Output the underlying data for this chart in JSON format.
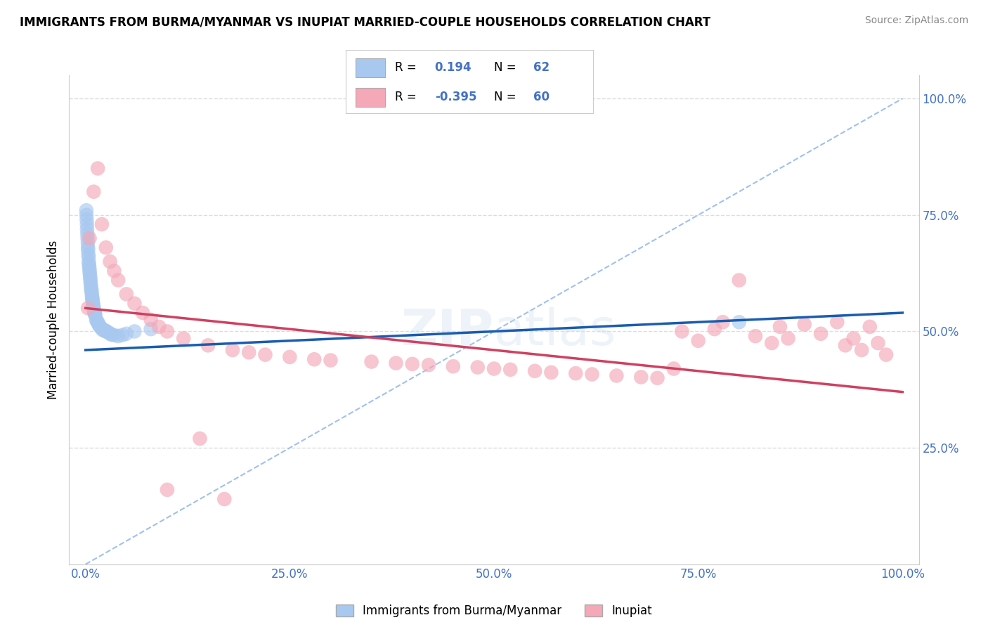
{
  "title": "IMMIGRANTS FROM BURMA/MYANMAR VS INUPIAT MARRIED-COUPLE HOUSEHOLDS CORRELATION CHART",
  "source": "Source: ZipAtlas.com",
  "ylabel": "Married-couple Households",
  "watermark": "ZIPatlas",
  "blue_R": 0.194,
  "blue_N": 62,
  "pink_R": -0.395,
  "pink_N": 60,
  "blue_color": "#A8C8F0",
  "pink_color": "#F4A8B8",
  "blue_line_color": "#1A5CB0",
  "pink_line_color": "#D04060",
  "diag_line_color": "#A0C0F0",
  "grid_color": "#DDDDDD",
  "tick_color": "#4472C4",
  "blue_scatter": [
    [
      0.2,
      72.0
    ],
    [
      0.3,
      68.0
    ],
    [
      0.4,
      65.0
    ],
    [
      0.5,
      63.0
    ],
    [
      0.6,
      61.0
    ],
    [
      0.7,
      59.0
    ],
    [
      0.8,
      57.5
    ],
    [
      0.9,
      56.0
    ],
    [
      1.0,
      55.0
    ],
    [
      1.2,
      53.5
    ],
    [
      1.5,
      52.0
    ],
    [
      2.0,
      50.5
    ],
    [
      2.5,
      50.0
    ],
    [
      3.0,
      49.5
    ],
    [
      4.0,
      49.0
    ],
    [
      5.0,
      49.5
    ],
    [
      6.0,
      50.0
    ],
    [
      0.15,
      74.0
    ],
    [
      0.25,
      70.0
    ],
    [
      0.35,
      66.5
    ],
    [
      0.45,
      64.0
    ],
    [
      0.55,
      62.0
    ],
    [
      0.65,
      60.0
    ],
    [
      0.75,
      58.5
    ],
    [
      0.85,
      57.0
    ],
    [
      0.95,
      55.5
    ],
    [
      1.1,
      54.0
    ],
    [
      1.3,
      52.5
    ],
    [
      1.7,
      51.2
    ],
    [
      2.2,
      50.2
    ],
    [
      2.8,
      49.8
    ],
    [
      3.5,
      49.2
    ],
    [
      0.1,
      76.0
    ],
    [
      0.18,
      73.0
    ],
    [
      0.28,
      69.0
    ],
    [
      0.38,
      66.0
    ],
    [
      0.48,
      63.5
    ],
    [
      0.58,
      61.5
    ],
    [
      0.68,
      59.5
    ],
    [
      0.78,
      58.0
    ],
    [
      0.88,
      56.5
    ],
    [
      0.98,
      55.2
    ],
    [
      1.15,
      53.8
    ],
    [
      1.4,
      52.2
    ],
    [
      1.8,
      51.0
    ],
    [
      2.3,
      50.3
    ],
    [
      3.2,
      49.3
    ],
    [
      4.5,
      49.2
    ],
    [
      0.12,
      75.0
    ],
    [
      0.22,
      71.0
    ],
    [
      0.32,
      67.5
    ],
    [
      0.42,
      64.5
    ],
    [
      0.52,
      62.5
    ],
    [
      0.62,
      60.5
    ],
    [
      0.72,
      59.0
    ],
    [
      0.82,
      57.0
    ],
    [
      0.92,
      55.8
    ],
    [
      1.05,
      54.2
    ],
    [
      1.6,
      51.5
    ],
    [
      2.5,
      50.1
    ],
    [
      8.0,
      50.5
    ],
    [
      80.0,
      52.0
    ]
  ],
  "pink_scatter": [
    [
      0.5,
      70.0
    ],
    [
      1.0,
      80.0
    ],
    [
      1.5,
      85.0
    ],
    [
      2.0,
      73.0
    ],
    [
      2.5,
      68.0
    ],
    [
      3.0,
      65.0
    ],
    [
      3.5,
      63.0
    ],
    [
      4.0,
      61.0
    ],
    [
      5.0,
      58.0
    ],
    [
      6.0,
      56.0
    ],
    [
      7.0,
      54.0
    ],
    [
      8.0,
      52.5
    ],
    [
      9.0,
      51.0
    ],
    [
      10.0,
      50.0
    ],
    [
      12.0,
      48.5
    ],
    [
      15.0,
      47.0
    ],
    [
      18.0,
      46.0
    ],
    [
      20.0,
      45.5
    ],
    [
      22.0,
      45.0
    ],
    [
      25.0,
      44.5
    ],
    [
      28.0,
      44.0
    ],
    [
      30.0,
      43.8
    ],
    [
      35.0,
      43.5
    ],
    [
      38.0,
      43.2
    ],
    [
      40.0,
      43.0
    ],
    [
      42.0,
      42.8
    ],
    [
      45.0,
      42.5
    ],
    [
      48.0,
      42.3
    ],
    [
      50.0,
      42.0
    ],
    [
      52.0,
      41.8
    ],
    [
      55.0,
      41.5
    ],
    [
      57.0,
      41.2
    ],
    [
      60.0,
      41.0
    ],
    [
      62.0,
      40.8
    ],
    [
      65.0,
      40.5
    ],
    [
      68.0,
      40.2
    ],
    [
      70.0,
      40.0
    ],
    [
      72.0,
      42.0
    ],
    [
      73.0,
      50.0
    ],
    [
      75.0,
      48.0
    ],
    [
      77.0,
      50.5
    ],
    [
      78.0,
      52.0
    ],
    [
      80.0,
      61.0
    ],
    [
      82.0,
      49.0
    ],
    [
      84.0,
      47.5
    ],
    [
      85.0,
      51.0
    ],
    [
      86.0,
      48.5
    ],
    [
      88.0,
      51.5
    ],
    [
      90.0,
      49.5
    ],
    [
      92.0,
      52.0
    ],
    [
      93.0,
      47.0
    ],
    [
      94.0,
      48.5
    ],
    [
      95.0,
      46.0
    ],
    [
      96.0,
      51.0
    ],
    [
      97.0,
      47.5
    ],
    [
      98.0,
      45.0
    ],
    [
      14.0,
      27.0
    ],
    [
      10.0,
      16.0
    ],
    [
      17.0,
      14.0
    ],
    [
      0.3,
      55.0
    ]
  ],
  "ylim": [
    0,
    105
  ],
  "xlim": [
    -2,
    102
  ],
  "ytick_positions": [
    25,
    50,
    75,
    100
  ],
  "ytick_labels": [
    "25.0%",
    "50.0%",
    "75.0%",
    "100.0%"
  ],
  "xtick_positions": [
    0,
    25,
    50,
    75,
    100
  ],
  "xtick_labels": [
    "0.0%",
    "25.0%",
    "50.0%",
    "75.0%",
    "100.0%"
  ],
  "blue_trend_x": [
    0,
    100
  ],
  "blue_trend_y": [
    46.0,
    54.0
  ],
  "pink_trend_x": [
    0,
    100
  ],
  "pink_trend_y": [
    55.0,
    37.0
  ]
}
